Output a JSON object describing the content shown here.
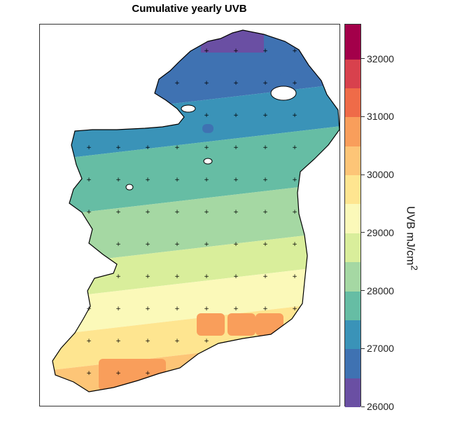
{
  "title": "Cumulative yearly UVB",
  "colorbar": {
    "title": "UVB mJ/cm",
    "title_sup": "2",
    "min": 26000,
    "max": 32600,
    "ticks": [
      "26000",
      "27000",
      "28000",
      "29000",
      "30000",
      "31000",
      "32000"
    ],
    "bins": [
      {
        "from": 26000,
        "to": 26500,
        "color": "#6a4fa3"
      },
      {
        "from": 26500,
        "to": 27000,
        "color": "#3f72b2"
      },
      {
        "from": 27000,
        "to": 27500,
        "color": "#3a93b8"
      },
      {
        "from": 27500,
        "to": 28000,
        "color": "#66bda4"
      },
      {
        "from": 28000,
        "to": 28500,
        "color": "#a5d8a3"
      },
      {
        "from": 28500,
        "to": 29000,
        "color": "#d9ee9b"
      },
      {
        "from": 29000,
        "to": 29500,
        "color": "#fbf9b9"
      },
      {
        "from": 29500,
        "to": 30000,
        "color": "#fee590"
      },
      {
        "from": 30000,
        "to": 30500,
        "color": "#fdc577"
      },
      {
        "from": 30500,
        "to": 31000,
        "color": "#f99e5b"
      },
      {
        "from": 31000,
        "to": 31500,
        "color": "#ef6b48"
      },
      {
        "from": 31500,
        "to": 32000,
        "color": "#d8414d"
      },
      {
        "from": 32000,
        "to": 32600,
        "color": "#a3004a"
      }
    ]
  }
}
